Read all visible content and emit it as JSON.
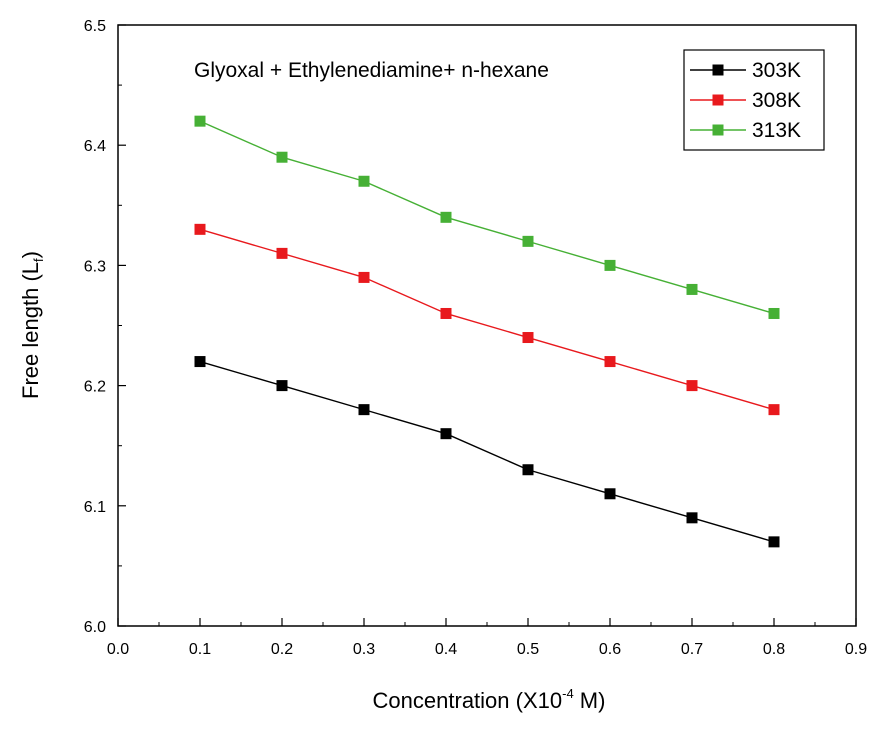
{
  "chart_data": {
    "type": "line",
    "annotation": "Glyoxal + Ethylenediamine+ n-hexane",
    "xlabel": "Concentration (X10-4 M)",
    "xlabel_main": "Concentration (X10",
    "xlabel_sup": "-4",
    "xlabel_tail": " M)",
    "ylabel": "Free length (Lf)",
    "ylabel_main": "Free length (L",
    "ylabel_sub": "f",
    "ylabel_tail": ")",
    "xlim": [
      0.0,
      0.9
    ],
    "ylim": [
      6.0,
      6.5
    ],
    "xticks": [
      "0.0",
      "0.1",
      "0.2",
      "0.3",
      "0.4",
      "0.5",
      "0.6",
      "0.7",
      "0.8",
      "0.9"
    ],
    "yticks": [
      "6.0",
      "6.1",
      "6.2",
      "6.3",
      "6.4",
      "6.5"
    ],
    "grid": false,
    "legend_position": "top-right",
    "x": [
      0.1,
      0.2,
      0.3,
      0.4,
      0.5,
      0.6,
      0.7,
      0.8
    ],
    "series": [
      {
        "name": "303K",
        "color": "#000000",
        "values": [
          6.22,
          6.2,
          6.18,
          6.16,
          6.13,
          6.11,
          6.09,
          6.07
        ]
      },
      {
        "name": "308K",
        "color": "#e8191d",
        "values": [
          6.33,
          6.31,
          6.29,
          6.26,
          6.24,
          6.22,
          6.2,
          6.18
        ]
      },
      {
        "name": "313K",
        "color": "#46b035",
        "values": [
          6.42,
          6.39,
          6.37,
          6.34,
          6.32,
          6.3,
          6.28,
          6.26
        ]
      }
    ]
  }
}
